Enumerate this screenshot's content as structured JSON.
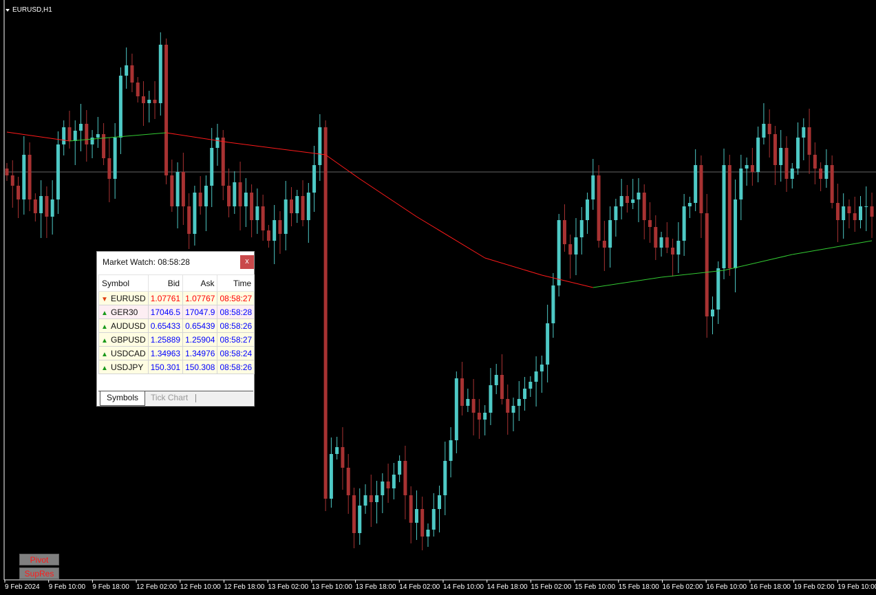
{
  "chart_title": "EURUSD,H1",
  "buttons": {
    "pivot": "Pivot",
    "supres": "SupRes"
  },
  "colors": {
    "bull": "#4ec9c5",
    "bear": "#a83232",
    "ma_down": "#ff1a1a",
    "ma_up": "#33cc33",
    "bid_line": "#666666",
    "background": "#000000"
  },
  "chart_data": {
    "type": "candlestick",
    "symbol": "EURUSD",
    "timeframe": "H1",
    "bid_line": 1.07761,
    "closes": [
      1.07756,
      1.07741,
      1.07721,
      1.07786,
      1.07721,
      1.07701,
      1.07726,
      1.07696,
      1.07721,
      1.07801,
      1.07826,
      1.07806,
      1.07821,
      1.07831,
      1.07801,
      1.07811,
      1.07816,
      1.07781,
      1.07751,
      1.07811,
      1.07901,
      1.07916,
      1.07891,
      1.07871,
      1.07861,
      1.07866,
      1.07861,
      1.07946,
      1.07756,
      1.07711,
      1.07761,
      1.07711,
      1.07671,
      1.07731,
      1.07711,
      1.07741,
      1.07796,
      1.07811,
      1.07741,
      1.07711,
      1.07746,
      1.07711,
      1.07731,
      1.07691,
      1.07711,
      1.07676,
      1.07661,
      1.07691,
      1.07671,
      1.07721,
      1.07701,
      1.07726,
      1.07691,
      1.07731,
      1.07771,
      1.07826,
      1.07286,
      1.07351,
      1.07361,
      1.07331,
      1.07291,
      1.07236,
      1.07276,
      1.07291,
      1.07281,
      1.07291,
      1.07311,
      1.07301,
      1.07321,
      1.07341,
      1.07291,
      1.07251,
      1.07271,
      1.07231,
      1.07241,
      1.07271,
      1.07291,
      1.07341,
      1.07371,
      1.07461,
      1.07421,
      1.07431,
      1.07411,
      1.07401,
      1.07411,
      1.07451,
      1.07466,
      1.07431,
      1.07411,
      1.07421,
      1.07431,
      1.07446,
      1.07456,
      1.07471,
      1.07481,
      1.07541,
      1.07596,
      1.07691,
      1.07656,
      1.07641,
      1.07666,
      1.07691,
      1.07721,
      1.07756,
      1.07661,
      1.07651,
      1.07691,
      1.07711,
      1.07726,
      1.07716,
      1.07721,
      1.07731,
      1.07691,
      1.07681,
      1.07651,
      1.07666,
      1.07651,
      1.07641,
      1.07661,
      1.07711,
      1.07716,
      1.07771,
      1.07701,
      1.07551,
      1.07561,
      1.07621,
      1.07771,
      1.07621,
      1.07721,
      1.07766,
      1.07771,
      1.07761,
      1.07811,
      1.07831,
      1.07816,
      1.07771,
      1.07796,
      1.07751,
      1.07766,
      1.07811,
      1.07826,
      1.07786,
      1.07766,
      1.07751,
      1.07771,
      1.07716,
      1.07691,
      1.07711,
      1.07701,
      1.07691,
      1.07711,
      1.07711,
      1.07696
    ],
    "moving_average": [
      [
        0,
        1.07819
      ],
      [
        11,
        1.07806
      ],
      [
        28,
        1.07818
      ],
      [
        39,
        1.07804
      ],
      [
        56,
        1.07786
      ],
      [
        62,
        1.07751
      ],
      [
        72,
        1.07696
      ],
      [
        84,
        1.07636
      ],
      [
        94,
        1.07611
      ],
      [
        103,
        1.07593
      ],
      [
        115,
        1.07608
      ],
      [
        126,
        1.07618
      ],
      [
        138,
        1.07641
      ],
      [
        152,
        1.07661
      ]
    ],
    "x_tick_labels": [
      "9 Feb 2024",
      "9 Feb 10:00",
      "9 Feb 18:00",
      "12 Feb 02:00",
      "12 Feb 10:00",
      "12 Feb 18:00",
      "13 Feb 02:00",
      "13 Feb 10:00",
      "13 Feb 18:00",
      "14 Feb 02:00",
      "14 Feb 10:00",
      "14 Feb 18:00",
      "15 Feb 02:00",
      "15 Feb 10:00",
      "15 Feb 18:00",
      "16 Feb 02:00",
      "16 Feb 10:00",
      "16 Feb 18:00",
      "19 Feb 02:00",
      "19 Feb 10:00"
    ]
  },
  "market_watch": {
    "title": "Market Watch: 08:58:28",
    "close_label": "x",
    "columns": [
      "Symbol",
      "Bid",
      "Ask",
      "Time"
    ],
    "rows": [
      {
        "symbol": "EURUSD",
        "bid": "1.07761",
        "ask": "1.07767",
        "time": "08:58:27",
        "direction": "down",
        "color": "#ff0000"
      },
      {
        "symbol": "GER30",
        "bid": "17046.5",
        "ask": "17047.9",
        "time": "08:58:28",
        "direction": "up",
        "color": "#0000ff"
      },
      {
        "symbol": "AUDUSD",
        "bid": "0.65433",
        "ask": "0.65439",
        "time": "08:58:26",
        "direction": "up",
        "color": "#0000ff"
      },
      {
        "symbol": "GBPUSD",
        "bid": "1.25889",
        "ask": "1.25904",
        "time": "08:58:27",
        "direction": "up",
        "color": "#0000ff"
      },
      {
        "symbol": "USDCAD",
        "bid": "1.34963",
        "ask": "1.34976",
        "time": "08:58:24",
        "direction": "up",
        "color": "#0000ff"
      },
      {
        "symbol": "USDJPY",
        "bid": "150.301",
        "ask": "150.308",
        "time": "08:58:26",
        "direction": "up",
        "color": "#0000ff"
      }
    ],
    "tabs": [
      "Symbols",
      "Tick Chart"
    ]
  }
}
